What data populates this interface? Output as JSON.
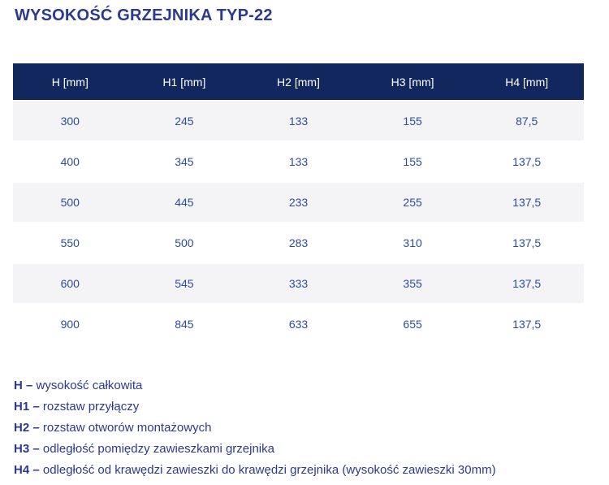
{
  "title": "WYSOKOŚĆ GRZEJNIKA TYP-22",
  "colors": {
    "title_blue": "#2B3991",
    "header_navy": "#12275E",
    "header_text": "#FFFFFF",
    "row_alt_gray": "#F4F4F6",
    "cell_blue": "#2E4C9B"
  },
  "table": {
    "headers": [
      "H [mm]",
      "H1 [mm]",
      "H2 [mm]",
      "H3 [mm]",
      "H4 [mm]"
    ],
    "rows": [
      [
        "300",
        "245",
        "133",
        "155",
        "87,5"
      ],
      [
        "400",
        "345",
        "133",
        "155",
        "137,5"
      ],
      [
        "500",
        "445",
        "233",
        "255",
        "137,5"
      ],
      [
        "550",
        "500",
        "283",
        "310",
        "137,5"
      ],
      [
        "600",
        "545",
        "333",
        "355",
        "137,5"
      ],
      [
        "900",
        "845",
        "633",
        "655",
        "137,5"
      ]
    ]
  },
  "legend": [
    {
      "term": "H –",
      "desc": "wysokość całkowita"
    },
    {
      "term": "H1 –",
      "desc": "rozstaw przyłączy"
    },
    {
      "term": "H2 –",
      "desc": "rozstaw otworów montażowych"
    },
    {
      "term": "H3 –",
      "desc": "odległość pomiędzy zawieszkami grzejnika"
    },
    {
      "term": "H4 –",
      "desc": "odległość od krawędzi zawieszki do krawędzi grzejnika (wysokość zawieszki 30mm)"
    }
  ]
}
